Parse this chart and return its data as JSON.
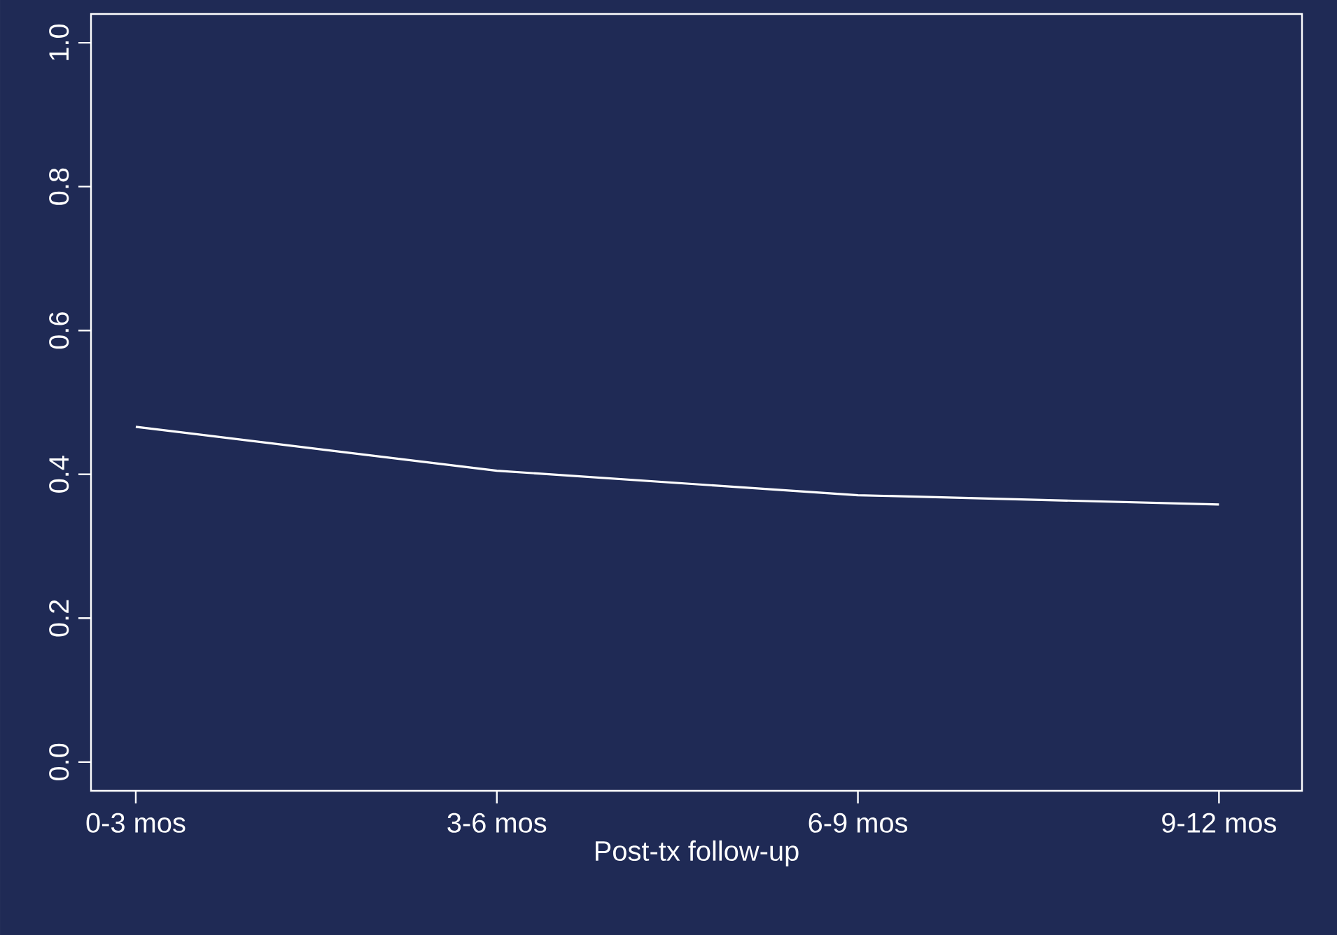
{
  "chart_data": {
    "type": "line",
    "xlabel": "Post-tx follow-up",
    "categories": [
      "0-3 mos",
      "3-6 mos",
      "6-9 mos",
      "9-12 mos"
    ],
    "series": [
      {
        "color": "#ffffff",
        "values": [
          0.466,
          0.405,
          0.371,
          0.358
        ]
      }
    ],
    "ylim": [
      -0.04,
      1.04
    ],
    "yticks": [
      {
        "value": 0,
        "label": "0.0"
      },
      {
        "value": 0.2,
        "label": "0.2"
      },
      {
        "value": 0.4,
        "label": "0.4"
      },
      {
        "value": 0.6,
        "label": "0.6"
      },
      {
        "value": 0.8,
        "label": "0.8"
      },
      {
        "value": 1.0,
        "label": "1.0"
      }
    ],
    "grid": false,
    "marker": "none",
    "line_style": "solid"
  }
}
